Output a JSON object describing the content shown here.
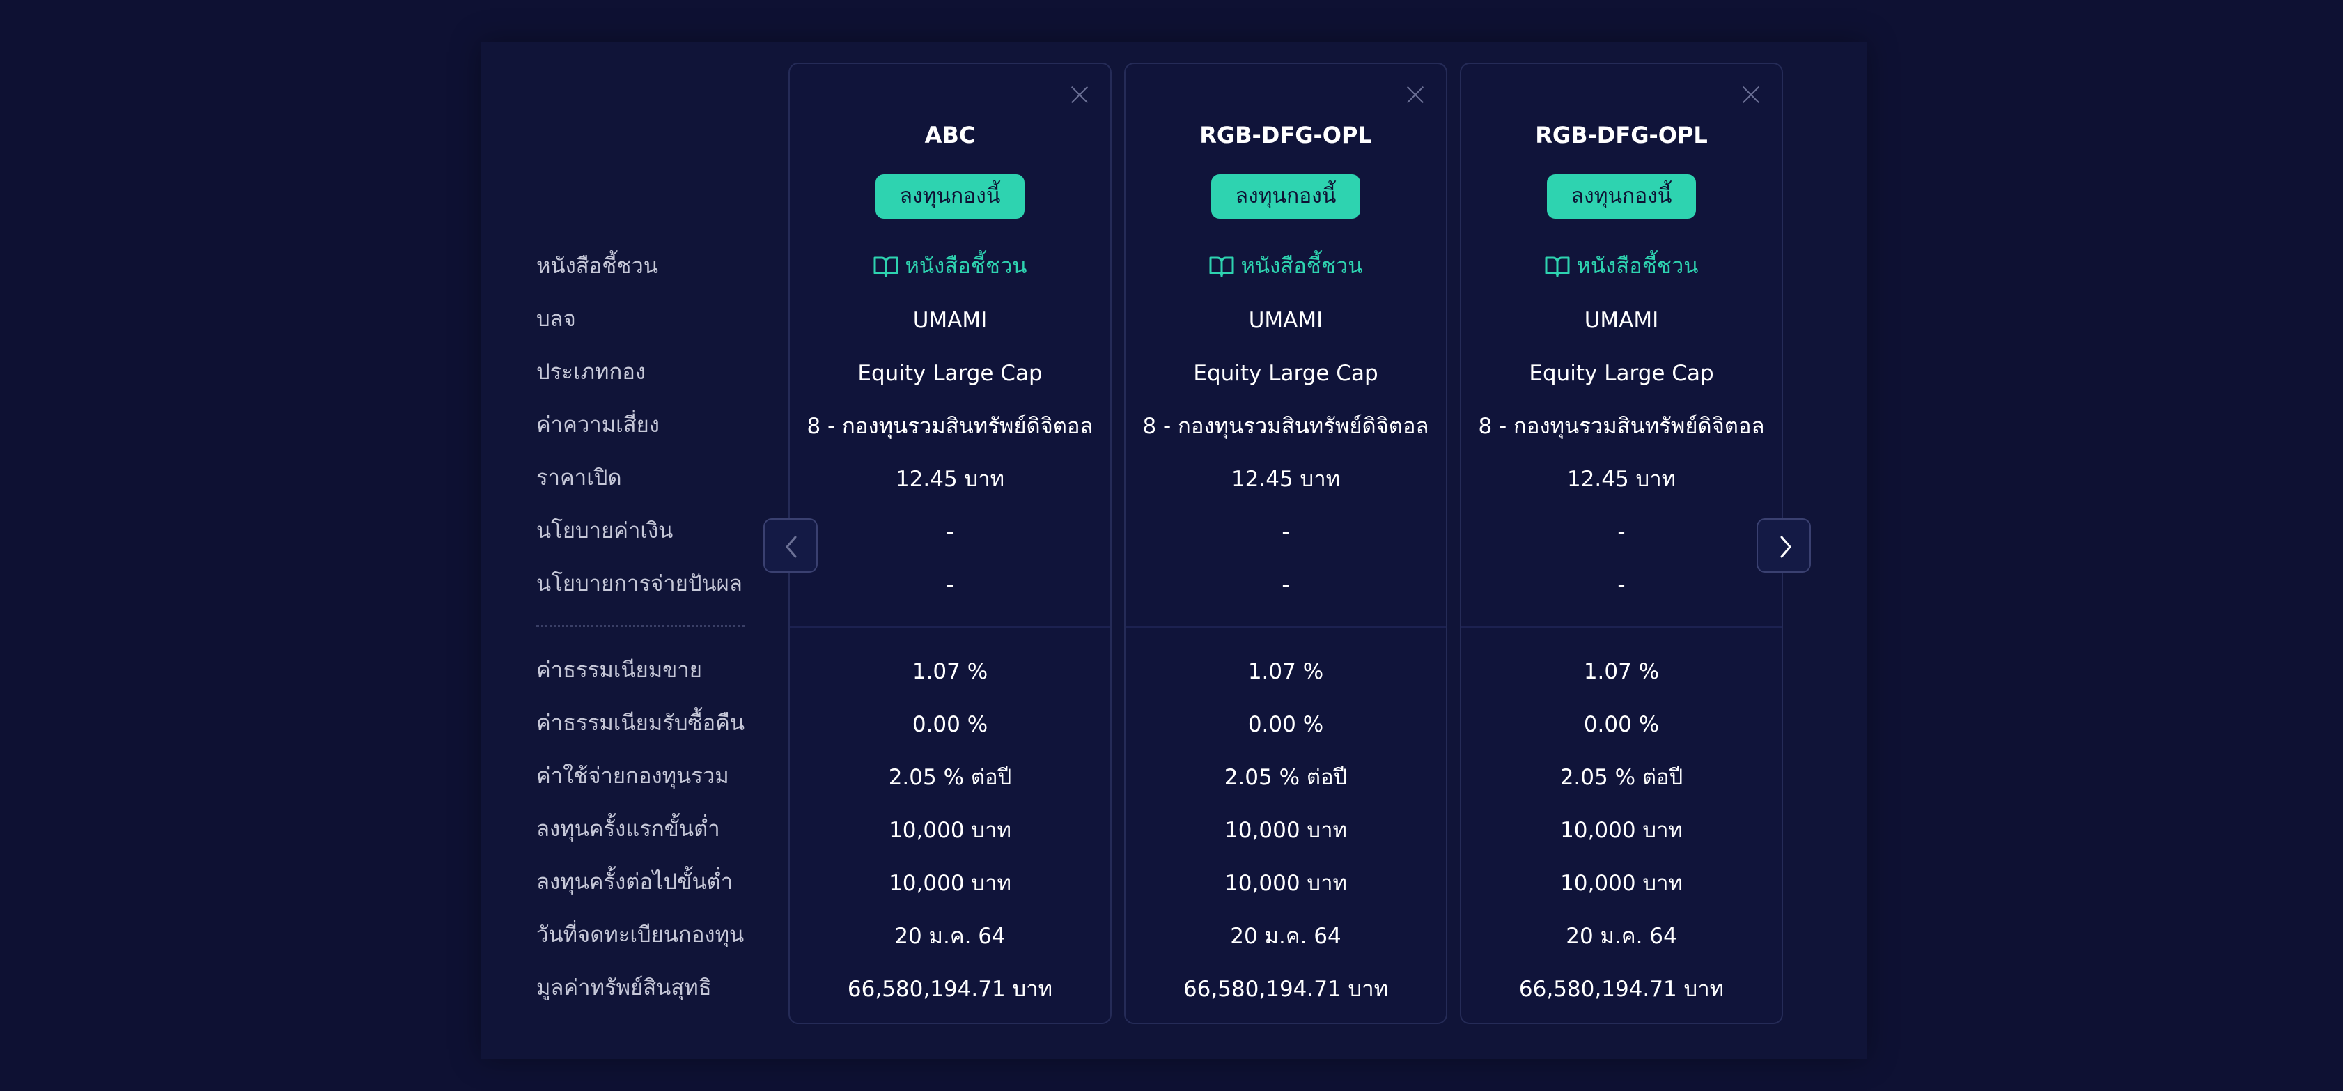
{
  "row_labels": {
    "prospectus": "หนังสือชี้ชวน",
    "amc": "บลจ",
    "fund_type": "ประเภทกอง",
    "risk": "ค่าความเสี่ยง",
    "open_price": "ราคาเปิด",
    "currency_policy": "นโยบายค่าเงิน",
    "dividend_policy": "นโยบายการจ่ายปันผล",
    "front_fee": "ค่าธรรมเนียมขาย",
    "back_fee": "ค่าธรรมเนียมรับซื้อคืน",
    "expense": "ค่าใช้จ่ายกองทุนรวม",
    "min_first": "ลงทุนครั้งแรกขั้นต่ำ",
    "min_next": "ลงทุนครั้งต่อไปขั้นต่ำ",
    "registered": "วันที่จดทะเบียนกองทุน",
    "nav": "มูลค่าทรัพย์สินสุทธิ"
  },
  "funds": [
    {
      "name": "ABC",
      "invest_label": "ลงทุนกองนี้",
      "prospectus": "หนังสือชี้ชวน",
      "amc": "UMAMI",
      "fund_type": "Equity Large Cap",
      "risk": "8 - กองทุนรวมสินทรัพย์ดิจิตอล",
      "open_price": "12.45 บาท",
      "currency_policy": "-",
      "dividend_policy": "-",
      "front_fee": "1.07 %",
      "back_fee": "0.00 %",
      "expense": "2.05 % ต่อปี",
      "min_first": "10,000 บาท",
      "min_next": "10,000 บาท",
      "registered": "20 ม.ค. 64",
      "nav": "66,580,194.71 บาท"
    },
    {
      "name": "RGB-DFG-OPL",
      "invest_label": "ลงทุนกองนี้",
      "prospectus": "หนังสือชี้ชวน",
      "amc": "UMAMI",
      "fund_type": "Equity Large Cap",
      "risk": "8 - กองทุนรวมสินทรัพย์ดิจิตอล",
      "open_price": "12.45 บาท",
      "currency_policy": "-",
      "dividend_policy": "-",
      "front_fee": "1.07 %",
      "back_fee": "0.00 %",
      "expense": "2.05 % ต่อปี",
      "min_first": "10,000 บาท",
      "min_next": "10,000 บาท",
      "registered": "20 ม.ค. 64",
      "nav": "66,580,194.71 บาท"
    },
    {
      "name": "RGB-DFG-OPL",
      "invest_label": "ลงทุนกองนี้",
      "prospectus": "หนังสือชี้ชวน",
      "amc": "UMAMI",
      "fund_type": "Equity Large Cap",
      "risk": "8 - กองทุนรวมสินทรัพย์ดิจิตอล",
      "open_price": "12.45 บาท",
      "currency_policy": "-",
      "dividend_policy": "-",
      "front_fee": "1.07 %",
      "back_fee": "0.00 %",
      "expense": "2.05 % ต่อปี",
      "min_first": "10,000 บาท",
      "min_next": "10,000 บาท",
      "registered": "20 ม.ค. 64",
      "nav": "66,580,194.71 บาท"
    }
  ],
  "icons": {
    "close": "close-icon",
    "prospectus": "book-open-icon",
    "prev": "chevron-left-icon",
    "next": "chevron-right-icon"
  },
  "colors": {
    "background": "#0e1133",
    "accent": "#2ed3b0",
    "label": "#c6c8d8",
    "border": "#252b57"
  }
}
